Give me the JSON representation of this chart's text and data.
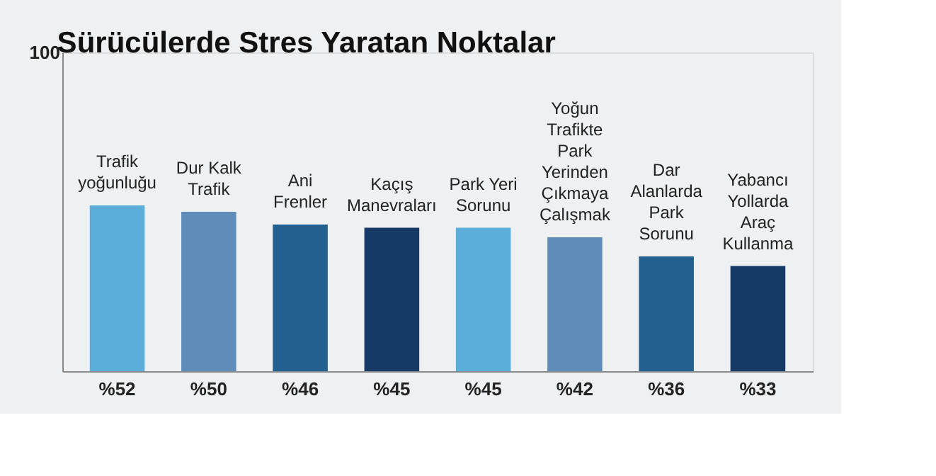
{
  "chart_data": {
    "type": "bar",
    "title": "Sürücülerde Stres Yaratan Noktalar",
    "categories": [
      "Trafik yoğunluğu",
      "Dur Kalk Trafik",
      "Ani Frenler",
      "Kaçış Manevraları",
      "Park Yeri Sorunu",
      "Yoğun Trafikte Park Yerinden Çıkmaya Çalışmak",
      "Dar Alanlarda Park Sorunu",
      "Yabancı Yollarda Araç Kullanma"
    ],
    "values": [
      52,
      50,
      46,
      45,
      45,
      42,
      36,
      33
    ],
    "colors": [
      "#5aaed9",
      "#5f8cb8",
      "#22608f",
      "#163a66",
      "#5aaed9",
      "#5f8cb8",
      "#22608f",
      "#163a66"
    ],
    "value_labels": [
      "%52",
      "%50",
      "%46",
      "%45",
      "%45",
      "%42",
      "%36",
      "%33"
    ],
    "ylim": [
      0,
      100
    ],
    "yticks": [
      100
    ]
  }
}
